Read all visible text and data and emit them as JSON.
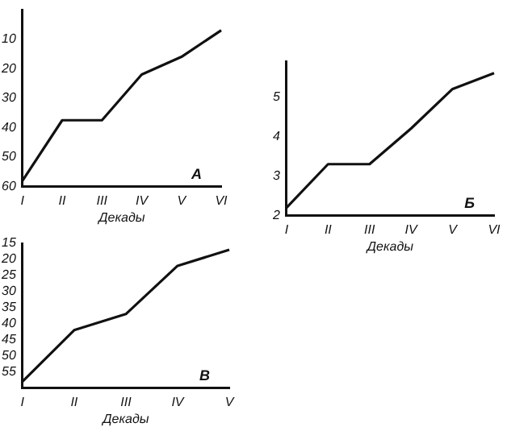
{
  "chart_data": [
    {
      "type": "line",
      "xlabel": "Декады",
      "categories": [
        "I",
        "II",
        "III",
        "IV",
        "V",
        "VI"
      ],
      "series": [
        {
          "color": "#111111",
          "values": [
            58,
            37.5,
            37.5,
            22,
            16,
            7
          ]
        }
      ],
      "ylim": [
        60,
        0
      ],
      "yticks": [
        10,
        20,
        30,
        40,
        50,
        60
      ],
      "grid": false,
      "legend": false,
      "marker": "none",
      "line_style": "solid",
      "annotations": [
        "А"
      ]
    },
    {
      "type": "line",
      "xlabel": "Декады",
      "categories": [
        "I",
        "II",
        "III",
        "IV",
        "V",
        "VI"
      ],
      "series": [
        {
          "color": "#111111",
          "values": [
            2.2,
            3.3,
            3.3,
            4.2,
            5.2,
            5.6
          ]
        }
      ],
      "ylim": [
        2,
        5.9
      ],
      "yticks": [
        2,
        3,
        4,
        5
      ],
      "grid": false,
      "legend": false,
      "marker": "none",
      "line_style": "solid",
      "annotations": [
        "Б"
      ]
    },
    {
      "type": "line",
      "xlabel": "Декады",
      "categories": [
        "I",
        "II",
        "III",
        "IV",
        "V"
      ],
      "series": [
        {
          "color": "#111111",
          "values": [
            58,
            42,
            37,
            22,
            17
          ]
        }
      ],
      "ylim": [
        60,
        15
      ],
      "yticks": [
        15,
        20,
        25,
        30,
        35,
        40,
        45,
        50,
        55
      ],
      "grid": false,
      "legend": false,
      "marker": "none",
      "line_style": "solid",
      "annotations": [
        "В"
      ]
    }
  ]
}
